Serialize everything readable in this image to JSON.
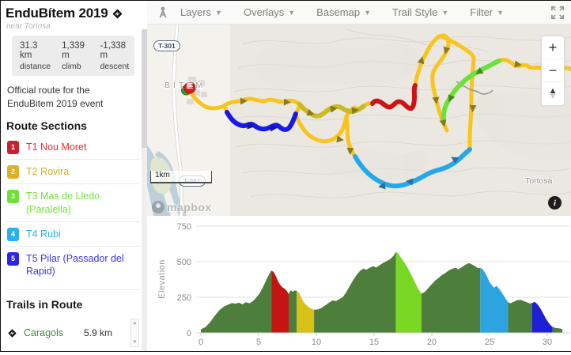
{
  "sidebar": {
    "title": "EnduBítem 2019",
    "near_label": "near",
    "near_place": "Tortosa",
    "stats": [
      {
        "value": "31.3 km",
        "label": "distance"
      },
      {
        "value": "1,339 m",
        "label": "climb"
      },
      {
        "value": "-1,338 m",
        "label": "descent"
      }
    ],
    "description": "Official route for the EnduBitem 2019 event",
    "route_sections_heading": "Route Sections",
    "route_sections": [
      {
        "num": "1",
        "label": "T1 Nou Moret",
        "color": "#c62331",
        "text_color": "#e03131"
      },
      {
        "num": "2",
        "label": "T2 Rovira",
        "color": "#ddb226",
        "text_color": "#d3ae25"
      },
      {
        "num": "3",
        "label": "T3 Mas de Lledo (Paralella)",
        "color": "#6fe03a",
        "text_color": "#72e43c"
      },
      {
        "num": "4",
        "label": "T4 Rubi",
        "color": "#29b1ef",
        "text_color": "#29b1ef"
      },
      {
        "num": "5",
        "label": "T5 Pilar (Passador del Rapid)",
        "color": "#2d23ea",
        "text_color": "#3b36ee"
      }
    ],
    "trails_heading": "Trails in Route",
    "trails": [
      {
        "name": "Caragols",
        "distance": "5.9 km",
        "name_color": "#3d9140"
      }
    ]
  },
  "map": {
    "toolbar": {
      "items": [
        "Layers",
        "Overlays",
        "Basemap",
        "Trail Style",
        "Filter"
      ]
    },
    "place_labels": {
      "bitem": "BÍTEM",
      "tortosa": "Tortosa"
    },
    "road_shield": "T-301",
    "scale_label": "1km",
    "attribution": "mapbox",
    "zoom_in": "+",
    "zoom_out": "−"
  },
  "chart_data": {
    "type": "area",
    "title": "",
    "xlabel": "",
    "ylabel": "Elevation",
    "xlim": [
      0,
      31.3
    ],
    "ylim": [
      0,
      750
    ],
    "yticks": [
      0,
      250,
      500,
      750
    ],
    "xticks": [
      0,
      5,
      10,
      15,
      20,
      25,
      30
    ],
    "grid": "horizontal",
    "base_color": "#4e7e3c",
    "segments": [
      {
        "from": 6.1,
        "to": 7.6,
        "color": "#c51414",
        "label": "T1 Nou Moret"
      },
      {
        "from": 8.3,
        "to": 9.8,
        "color": "#d6c116",
        "label": "T2 Rovira"
      },
      {
        "from": 16.9,
        "to": 19.1,
        "color": "#79d823",
        "label": "T3 Mas de Lledo (Paralella)"
      },
      {
        "from": 24.2,
        "to": 26.6,
        "color": "#2ca4e0",
        "label": "T4 Rubi"
      },
      {
        "from": 28.7,
        "to": 30.45,
        "color": "#1f1fd6",
        "label": "T5 Pilar (Passador del Rapid)"
      }
    ],
    "profile_km_m": [
      [
        0,
        25
      ],
      [
        0.4,
        40
      ],
      [
        0.8,
        75
      ],
      [
        1.2,
        120
      ],
      [
        1.6,
        160
      ],
      [
        2.0,
        185
      ],
      [
        2.4,
        200
      ],
      [
        2.7,
        210
      ],
      [
        3.0,
        205
      ],
      [
        3.3,
        212
      ],
      [
        3.6,
        200
      ],
      [
        3.9,
        215
      ],
      [
        4.2,
        208
      ],
      [
        4.5,
        222
      ],
      [
        4.8,
        248
      ],
      [
        5.1,
        280
      ],
      [
        5.4,
        325
      ],
      [
        5.7,
        378
      ],
      [
        5.9,
        410
      ],
      [
        6.1,
        437
      ],
      [
        6.3,
        428
      ],
      [
        6.5,
        398
      ],
      [
        6.7,
        360
      ],
      [
        6.9,
        335
      ],
      [
        7.1,
        318
      ],
      [
        7.3,
        308
      ],
      [
        7.45,
        292
      ],
      [
        7.6,
        272
      ],
      [
        7.7,
        290
      ],
      [
        7.8,
        300
      ],
      [
        7.95,
        288
      ],
      [
        8.1,
        298
      ],
      [
        8.3,
        296
      ],
      [
        8.5,
        280
      ],
      [
        8.7,
        248
      ],
      [
        8.9,
        215
      ],
      [
        9.2,
        190
      ],
      [
        9.5,
        172
      ],
      [
        9.8,
        162
      ],
      [
        10.2,
        165
      ],
      [
        10.5,
        178
      ],
      [
        10.8,
        195
      ],
      [
        11.1,
        212
      ],
      [
        11.4,
        228
      ],
      [
        11.7,
        224
      ],
      [
        12.0,
        238
      ],
      [
        12.3,
        252
      ],
      [
        12.6,
        288
      ],
      [
        12.9,
        330
      ],
      [
        13.2,
        372
      ],
      [
        13.5,
        408
      ],
      [
        13.8,
        438
      ],
      [
        14.1,
        452
      ],
      [
        14.3,
        443
      ],
      [
        14.6,
        456
      ],
      [
        14.9,
        468
      ],
      [
        15.2,
        460
      ],
      [
        15.5,
        476
      ],
      [
        15.8,
        492
      ],
      [
        16.1,
        505
      ],
      [
        16.4,
        518
      ],
      [
        16.7,
        542
      ],
      [
        16.9,
        570
      ],
      [
        17.1,
        558
      ],
      [
        17.3,
        532
      ],
      [
        17.6,
        498
      ],
      [
        17.9,
        458
      ],
      [
        18.2,
        412
      ],
      [
        18.5,
        362
      ],
      [
        18.8,
        312
      ],
      [
        19.1,
        275
      ],
      [
        19.4,
        288
      ],
      [
        19.7,
        315
      ],
      [
        20.0,
        342
      ],
      [
        20.3,
        368
      ],
      [
        20.6,
        388
      ],
      [
        20.9,
        408
      ],
      [
        21.2,
        422
      ],
      [
        21.5,
        440
      ],
      [
        21.8,
        452
      ],
      [
        22.1,
        456
      ],
      [
        22.3,
        446
      ],
      [
        22.6,
        463
      ],
      [
        22.9,
        478
      ],
      [
        23.2,
        490
      ],
      [
        23.5,
        480
      ],
      [
        23.8,
        466
      ],
      [
        24.0,
        455
      ],
      [
        24.2,
        458
      ],
      [
        24.4,
        448
      ],
      [
        24.6,
        424
      ],
      [
        24.8,
        392
      ],
      [
        25.0,
        358
      ],
      [
        25.2,
        335
      ],
      [
        25.4,
        318
      ],
      [
        25.6,
        330
      ],
      [
        25.8,
        312
      ],
      [
        26.0,
        290
      ],
      [
        26.2,
        265
      ],
      [
        26.4,
        240
      ],
      [
        26.6,
        215
      ],
      [
        26.8,
        208
      ],
      [
        27.1,
        218
      ],
      [
        27.4,
        230
      ],
      [
        27.7,
        232
      ],
      [
        28.0,
        222
      ],
      [
        28.3,
        212
      ],
      [
        28.5,
        206
      ],
      [
        28.7,
        210
      ],
      [
        28.9,
        218
      ],
      [
        29.1,
        205
      ],
      [
        29.3,
        185
      ],
      [
        29.5,
        158
      ],
      [
        29.7,
        128
      ],
      [
        29.9,
        98
      ],
      [
        30.1,
        72
      ],
      [
        30.3,
        52
      ],
      [
        30.45,
        42
      ],
      [
        30.7,
        35
      ],
      [
        31.0,
        32
      ],
      [
        31.3,
        26
      ]
    ]
  }
}
